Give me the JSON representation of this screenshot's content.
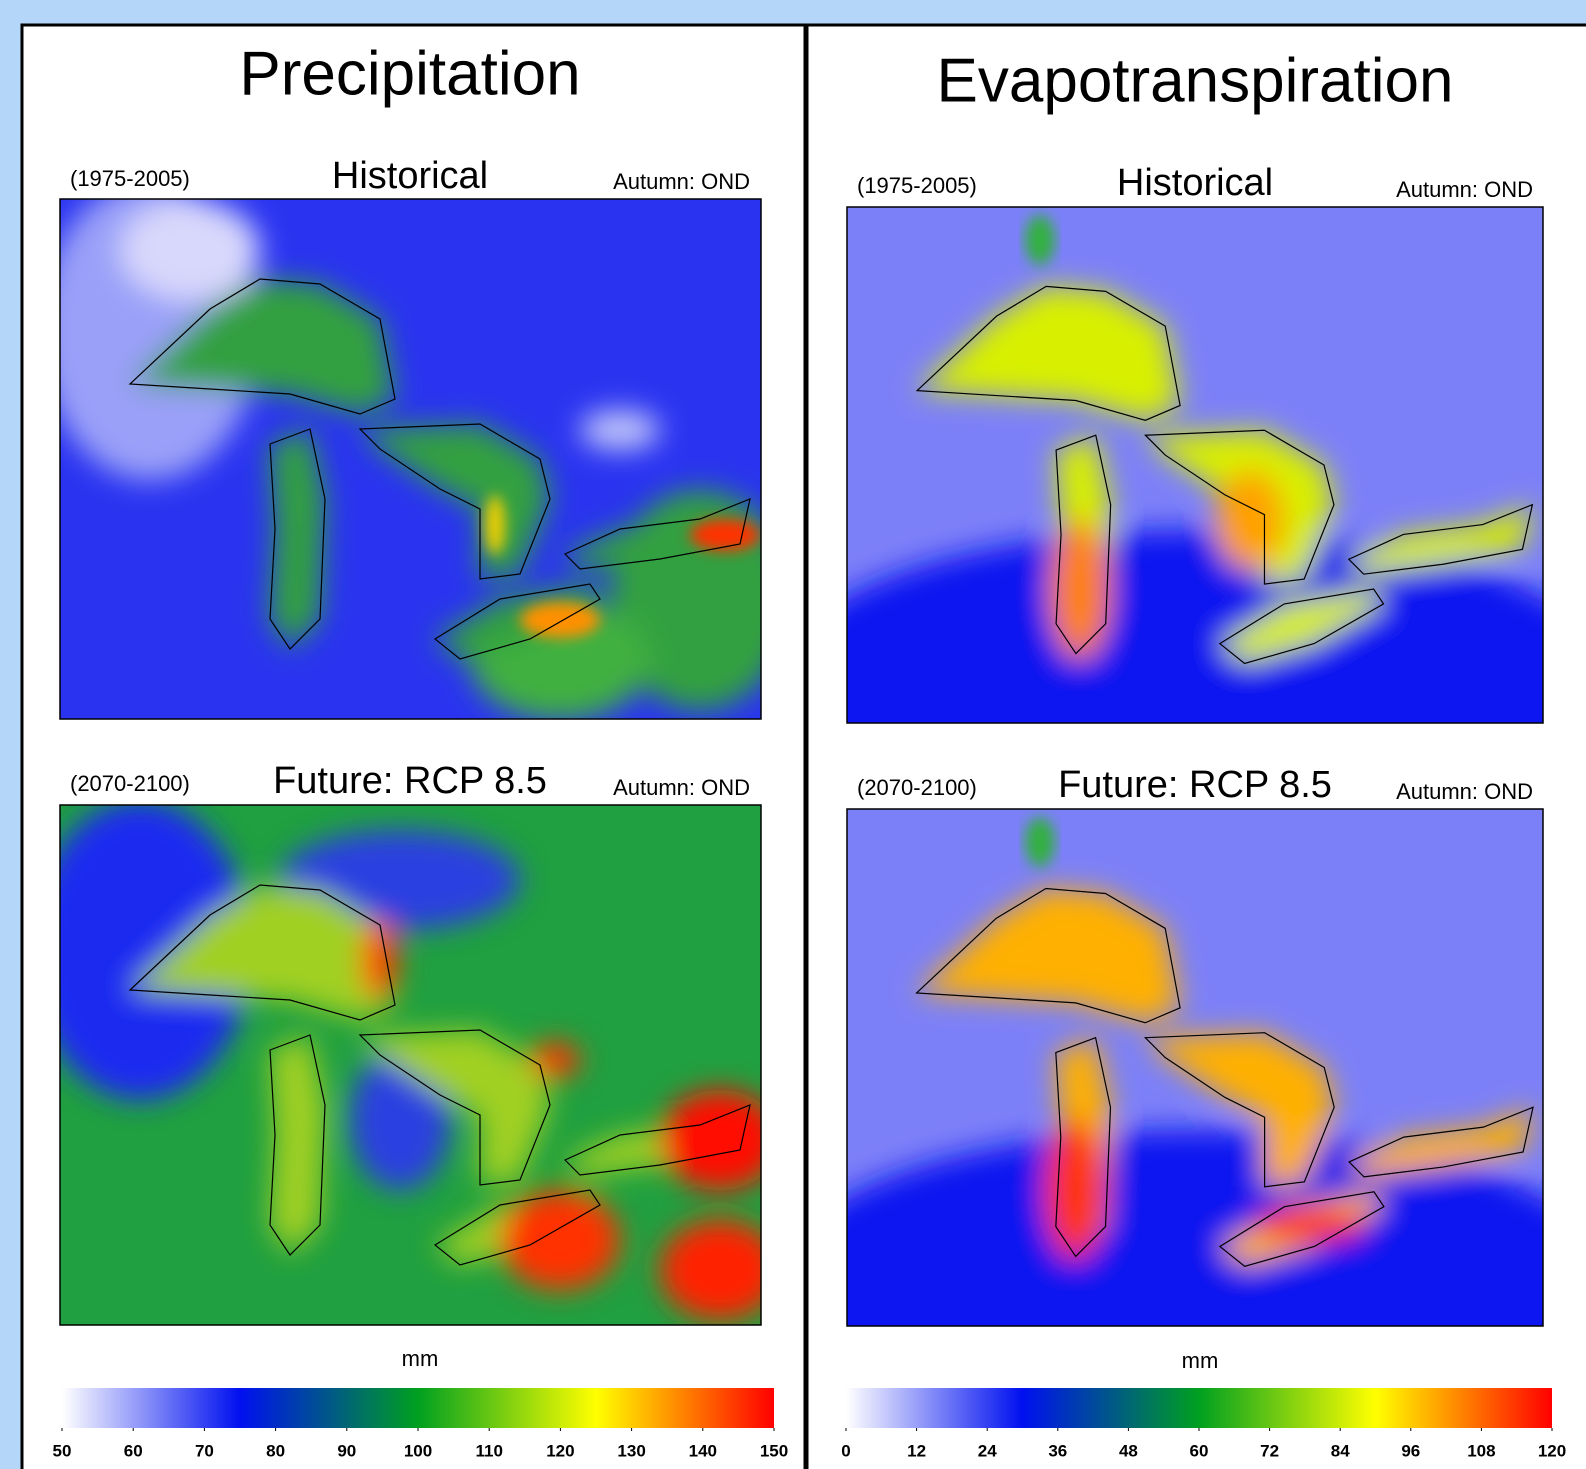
{
  "panels": [
    {
      "title": "Precipitation",
      "maps": [
        {
          "period": "(1975-2005)",
          "title": "Historical",
          "season": "Autumn: OND"
        },
        {
          "period": "(2070-2100)",
          "title": "Future: RCP 8.5",
          "season": "Autumn: OND"
        }
      ],
      "colorbar": {
        "unit": "mm",
        "range": [
          50,
          150
        ],
        "ticks": [
          50,
          60,
          70,
          80,
          90,
          100,
          110,
          120,
          130,
          140,
          150
        ],
        "colors": [
          "#ffffff",
          "#0010f0",
          "#00a020",
          "#ffff00",
          "#ff0000"
        ]
      }
    },
    {
      "title": "Evapotranspiration",
      "maps": [
        {
          "period": "(1975-2005)",
          "title": "Historical",
          "season": "Autumn: OND"
        },
        {
          "period": "(2070-2100)",
          "title": "Future: RCP 8.5",
          "season": "Autumn: OND"
        }
      ],
      "colorbar": {
        "unit": "mm",
        "range": [
          0,
          120
        ],
        "ticks": [
          0,
          12,
          24,
          36,
          48,
          60,
          72,
          84,
          96,
          108,
          120
        ],
        "colors": [
          "#ffffff",
          "#0010f0",
          "#00a020",
          "#ffff00",
          "#ff0000"
        ]
      }
    }
  ]
}
